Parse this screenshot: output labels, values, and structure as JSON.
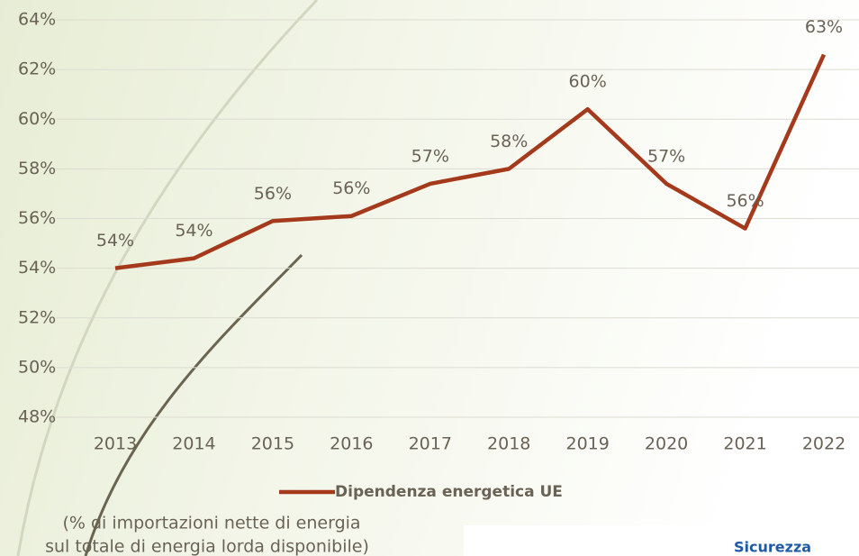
{
  "chart_data": {
    "type": "line",
    "categories": [
      "2013",
      "2014",
      "2015",
      "2016",
      "2017",
      "2018",
      "2019",
      "2020",
      "2021",
      "2022"
    ],
    "series": [
      {
        "name": "Dipendenza energetica UE",
        "color": "#a5391c",
        "values": [
          54.0,
          54.4,
          55.9,
          56.1,
          57.4,
          58.0,
          60.4,
          57.4,
          55.6,
          62.6
        ],
        "value_labels": [
          "54%",
          "54%",
          "56%",
          "56%",
          "57%",
          "58%",
          "60%",
          "57%",
          "56%",
          "63%"
        ]
      }
    ],
    "ylim": [
      48,
      64
    ],
    "yticks": [
      {
        "value": 48,
        "label": "48%"
      },
      {
        "value": 50,
        "label": "50%"
      },
      {
        "value": 52,
        "label": "52%"
      },
      {
        "value": 54,
        "label": "54%"
      },
      {
        "value": 56,
        "label": "56%"
      },
      {
        "value": 58,
        "label": "58%"
      },
      {
        "value": 60,
        "label": "60%"
      },
      {
        "value": 62,
        "label": "62%"
      },
      {
        "value": 64,
        "label": "64%"
      }
    ],
    "grid": true,
    "legend": "bottom",
    "note": [
      "(% di importazioni nette di energia",
      "sul totale di energia lorda disponibile)"
    ],
    "logo_text": "Sicurezza"
  }
}
